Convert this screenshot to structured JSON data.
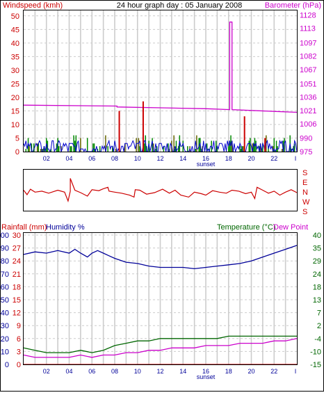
{
  "colors": {
    "windspeed": "#cc0000",
    "windspeed_avg": "#0000cc",
    "gust_green": "#008800",
    "gust_olive": "#666600",
    "barometer": "#cc00cc",
    "direction": "#cc0000",
    "humidity": "#000099",
    "temperature": "#006600",
    "dewpoint": "#cc00cc",
    "rainfall": "#cc0000",
    "grid": "#cccccc",
    "frame": "#000000"
  },
  "top_chart": {
    "title": "24 hour graph day : 05 January 2008",
    "left_label": "Windspeed (kmh)",
    "right_label": "Barometer (hPa)",
    "left_ticks": [
      "0",
      "5",
      "10",
      "15",
      "20",
      "25",
      "30",
      "35",
      "40",
      "45",
      "50"
    ],
    "right_ticks": [
      "975",
      "990",
      "1006",
      "1021",
      "1036",
      "1051",
      "1067",
      "1082",
      "1097",
      "1113",
      "1128"
    ],
    "x_ticks": [
      "02",
      "04",
      "06",
      "08",
      "10",
      "12",
      "14",
      "16",
      "18",
      "20",
      "22",
      "I"
    ],
    "sunset_label": "sunset",
    "ylim_left": [
      0,
      52
    ],
    "ylim_right": [
      975,
      1133
    ]
  },
  "mid_chart": {
    "direction_ticks": [
      "S",
      "E",
      "N",
      "W",
      "S"
    ]
  },
  "bottom_chart": {
    "rain_label": "Rainfall (mm)",
    "humidity_label": "Humidity %",
    "temp_label": "Temperature (°C)",
    "dew_label": "Dew Point",
    "humidity_ticks": [
      "0",
      "10",
      "20",
      "30",
      "40",
      "50",
      "60",
      "70",
      "80",
      "90",
      "100"
    ],
    "rain_ticks": [
      "0",
      "3",
      "6",
      "9",
      "12",
      "15",
      "18",
      "21",
      "24",
      "27",
      "30"
    ],
    "temp_ticks": [
      "-15",
      "-10",
      "-4",
      "2",
      "7",
      "13",
      "18",
      "24",
      "29",
      "35",
      "40"
    ],
    "x_ticks": [
      "02",
      "04",
      "06",
      "08",
      "10",
      "12",
      "14",
      "16",
      "18",
      "20",
      "22",
      "I"
    ],
    "sunset_label": "sunset"
  },
  "chart_data": [
    {
      "type": "line",
      "title": "24 hour graph day : 05 January 2008",
      "ylabel": "Windspeed (kmh)",
      "y2label": "Barometer (hPa)",
      "xlim": [
        0,
        24
      ],
      "ylim": [
        0,
        52
      ],
      "y2lim": [
        975,
        1133
      ],
      "grid": true,
      "series": [
        {
          "axis": "right",
          "kind": "step",
          "color": "#cc00cc",
          "x": [
            0,
            8.2,
            8.2,
            12,
            16,
            18.1,
            18.1,
            18.3,
            18.3,
            22,
            24
          ],
          "values": [
            1027,
            1026,
            1025,
            1024,
            1023,
            1022,
            1120,
            1120,
            1022,
            1020,
            1019
          ]
        },
        {
          "axis": "left",
          "kind": "spike",
          "color": "#cc0000",
          "x": [
            8.4,
            10.5,
            19.4,
            21.2
          ],
          "values": [
            15,
            18.5,
            13,
            5
          ]
        }
      ]
    },
    {
      "type": "line",
      "yticks": [
        "S",
        "E",
        "N",
        "W",
        "S"
      ],
      "series": [
        {
          "kind": "line",
          "color": "#cc0000",
          "x": [
            0,
            0.3,
            0.6,
            1,
            1.6,
            2.2,
            3,
            3.6,
            3.9,
            4.1,
            4.1,
            4.5,
            5,
            5.6,
            6,
            6.6,
            7,
            7.4,
            7.5,
            8,
            8.6,
            9.3,
            9.7,
            9.8,
            10.2,
            10.8,
            11.5,
            12.2,
            12.8,
            13.3,
            13.8,
            14.5,
            15,
            15.6,
            16,
            16.6,
            17.2,
            17.8,
            18.3,
            18.9,
            19.5,
            20,
            20.3,
            20.5,
            21,
            21.5,
            22,
            22.5,
            23,
            23.5,
            24
          ],
          "values": [
            180,
            225,
            170,
            200,
            190,
            210,
            180,
            200,
            290,
            190,
            60,
            180,
            205,
            240,
            175,
            185,
            165,
            150,
            190,
            200,
            210,
            230,
            250,
            175,
            180,
            220,
            205,
            170,
            210,
            180,
            230,
            250,
            200,
            215,
            230,
            185,
            200,
            210,
            180,
            190,
            215,
            200,
            265,
            150,
            180,
            210,
            190,
            230,
            200,
            175,
            205
          ]
        }
      ]
    },
    {
      "type": "line",
      "ylabel": "Rainfall (mm)",
      "y2label": "Temperature (°C)",
      "xlim": [
        0,
        24
      ],
      "grid": true,
      "series": [
        {
          "name": "Humidity %",
          "axis": "humidity",
          "kind": "line",
          "color": "#000099",
          "x": [
            0,
            1,
            2,
            3,
            4,
            4.5,
            5,
            5.6,
            6,
            6.5,
            7,
            7.5,
            8,
            9,
            10,
            11,
            12,
            13,
            14,
            15,
            16,
            17,
            18,
            19,
            20,
            21,
            22,
            23,
            24
          ],
          "values": [
            85,
            87,
            86,
            88,
            86,
            89,
            86,
            83,
            86,
            88,
            86,
            84,
            82,
            79,
            78,
            76,
            75,
            75,
            75,
            74,
            75,
            76,
            77,
            78,
            80,
            83,
            86,
            89,
            92
          ]
        },
        {
          "name": "Temperature (°C)",
          "axis": "temperature",
          "kind": "line",
          "color": "#006600",
          "x": [
            0,
            1,
            2,
            3,
            4,
            5,
            6,
            7,
            8,
            9,
            10,
            11,
            12,
            13,
            14,
            15,
            16,
            17,
            18,
            19,
            20,
            21,
            22,
            23,
            24
          ],
          "values": [
            -8,
            -9,
            -10,
            -10,
            -10,
            -9,
            -10,
            -9,
            -7,
            -6,
            -5,
            -5,
            -4,
            -4,
            -4,
            -4,
            -4,
            -4,
            -3,
            -3,
            -3,
            -3,
            -3,
            -3,
            -3
          ]
        },
        {
          "name": "Dew Point",
          "axis": "temperature",
          "kind": "line",
          "color": "#cc00cc",
          "x": [
            0,
            1,
            2,
            3,
            4,
            5,
            6,
            7,
            8,
            9,
            10,
            11,
            12,
            13,
            14,
            15,
            16,
            17,
            18,
            19,
            20,
            21,
            22,
            23,
            24
          ],
          "values": [
            -11,
            -12,
            -12,
            -12,
            -12,
            -11,
            -12,
            -11,
            -11,
            -10,
            -10,
            -9,
            -9,
            -8,
            -8,
            -8,
            -7,
            -7,
            -7,
            -6,
            -6,
            -6,
            -5,
            -5,
            -4
          ]
        },
        {
          "name": "Rainfall (mm)",
          "axis": "rain",
          "kind": "line",
          "color": "#cc0000",
          "x": [
            0,
            24
          ],
          "values": [
            0,
            0
          ]
        }
      ]
    }
  ]
}
